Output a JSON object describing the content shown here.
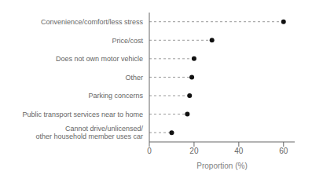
{
  "chart_data": {
    "type": "dot",
    "orientation": "horizontal",
    "categories": [
      "Convenience/comfort/less stress",
      "Price/cost",
      "Does not own motor vehicle",
      "Other",
      "Parking concerns",
      "Public transport services near to home",
      "Cannot drive/unlicensed/\nother household member uses car"
    ],
    "values": [
      60,
      28,
      20,
      19,
      18,
      17,
      10
    ],
    "xlim": [
      0,
      65
    ],
    "xticks": [
      0,
      20,
      40,
      60
    ],
    "xlabel": "Proportion (%)",
    "color": "#111111",
    "line_style": "dashed"
  }
}
